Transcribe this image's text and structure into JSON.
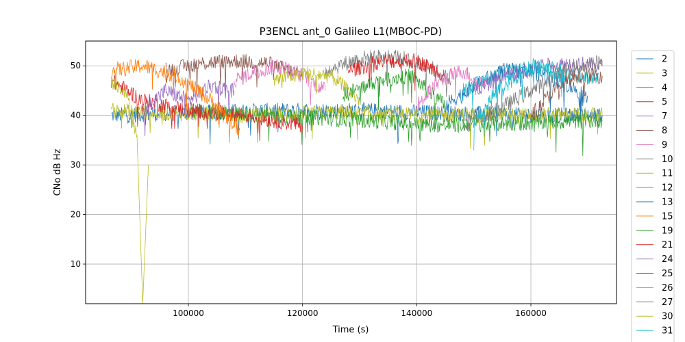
{
  "chart_data": {
    "type": "line",
    "title": "P3ENCL ant_0 Galileo L1(MBOC-PD)",
    "xlabel": "Time (s)",
    "ylabel": "CNo dB Hz",
    "xlim": [
      82000,
      175000
    ],
    "ylim": [
      2,
      55
    ],
    "x_ticks": [
      100000,
      120000,
      140000,
      160000
    ],
    "x_tick_labels": [
      "100000",
      "120000",
      "140000",
      "160000"
    ],
    "y_ticks": [
      10,
      20,
      30,
      40,
      50
    ],
    "y_tick_labels": [
      "10",
      "20",
      "30",
      "40",
      "50"
    ],
    "grid": true,
    "legend_position": "outside-right",
    "series": [
      {
        "name": "2",
        "color": "#1f77b4",
        "x": [
          86500,
          100000,
          115000,
          130000,
          145000,
          160000,
          172500
        ],
        "y": [
          40,
          40.5,
          41,
          41,
          40.5,
          40,
          40
        ]
      },
      {
        "name": "3",
        "color": "#bcbd22",
        "x": [
          86500,
          95000,
          110000,
          125000,
          140000,
          155000,
          172500
        ],
        "y": [
          41,
          40.5,
          40,
          40.5,
          40,
          40,
          40
        ]
      },
      {
        "name": "4",
        "color": "#2ca02c",
        "x": [
          100000,
          115000,
          130000,
          145000,
          160000,
          172500
        ],
        "y": [
          41,
          40,
          39,
          38,
          38.5,
          39
        ]
      },
      {
        "name": "5",
        "color": "#d62728",
        "x": [
          86500,
          92000,
          100000,
          110000,
          120000
        ],
        "y": [
          47,
          43,
          41,
          40,
          38
        ]
      },
      {
        "name": "7",
        "color": "#9467bd",
        "x": [
          92000,
          96000,
          100000,
          104000,
          108000
        ],
        "y": [
          41,
          45,
          43,
          46,
          45
        ]
      },
      {
        "name": "8",
        "color": "#8c564b",
        "x": [
          96000,
          102000,
          108000,
          114000,
          120000
        ],
        "y": [
          49,
          50.5,
          51,
          50.5,
          48
        ]
      },
      {
        "name": "9",
        "color": "#e377c2",
        "x": [
          108000,
          112000,
          116000,
          120000,
          124000
        ],
        "y": [
          47,
          49,
          50,
          48,
          45
        ]
      },
      {
        "name": "10",
        "color": "#7f7f7f",
        "x": [
          124000,
          130000,
          136000,
          142000,
          146000
        ],
        "y": [
          49,
          51.5,
          52,
          50,
          47
        ]
      },
      {
        "name": "11",
        "color": "#bcbd22",
        "x": [
          115000,
          120000,
          125000,
          130000
        ],
        "y": [
          47,
          48.5,
          48,
          43
        ]
      },
      {
        "name": "12",
        "color": "#17becf",
        "x": [
          148000,
          154000,
          160000,
          166000,
          172000
        ],
        "y": [
          45,
          48,
          50,
          49,
          47
        ]
      },
      {
        "name": "13",
        "color": "#1f77b4",
        "x": [
          145000,
          150000,
          155000,
          160000,
          165000,
          170000
        ],
        "y": [
          42,
          46,
          49,
          49,
          47,
          44
        ]
      },
      {
        "name": "15",
        "color": "#ff7f0e",
        "x": [
          86500,
          92000,
          98000,
          104000,
          109000
        ],
        "y": [
          49,
          50,
          48,
          43,
          37
        ]
      },
      {
        "name": "19",
        "color": "#2ca02c",
        "x": [
          127000,
          133000,
          139000,
          145000
        ],
        "y": [
          44,
          47,
          48,
          42
        ]
      },
      {
        "name": "21",
        "color": "#d62728",
        "x": [
          128000,
          134000,
          140000,
          145000
        ],
        "y": [
          49,
          51,
          51,
          48
        ]
      },
      {
        "name": "24",
        "color": "#9467bd",
        "x": [
          150000,
          156000,
          162000,
          168000,
          172500
        ],
        "y": [
          45,
          48,
          50,
          50.5,
          50
        ]
      },
      {
        "name": "25",
        "color": "#8c564b",
        "x": [
          160000,
          164000,
          168000,
          172500
        ],
        "y": [
          40,
          45,
          48,
          48
        ]
      },
      {
        "name": "26",
        "color": "#e377c2",
        "x": [
          140000,
          144000,
          148000,
          152000
        ],
        "y": [
          42,
          47,
          49,
          46
        ]
      },
      {
        "name": "27",
        "color": "#7f7f7f",
        "x": [
          148000,
          154000,
          160000,
          166000,
          172500
        ],
        "y": [
          38,
          41,
          45,
          49,
          51
        ]
      },
      {
        "name": "30",
        "color": "#bcbd22",
        "x": [
          86500,
          89000,
          91000,
          92000,
          93000
        ],
        "y": [
          47,
          45,
          36,
          2,
          30
        ]
      },
      {
        "name": "31",
        "color": "#17becf",
        "x": [
          150000,
          154000,
          158000,
          162000,
          166000
        ],
        "y": [
          38,
          45,
          48,
          50,
          48
        ]
      }
    ],
    "legend_names": [
      "2",
      "3",
      "4",
      "5",
      "7",
      "8",
      "9",
      "10",
      "11",
      "12",
      "13",
      "15",
      "19",
      "21",
      "24",
      "25",
      "26",
      "27",
      "30",
      "31"
    ]
  }
}
